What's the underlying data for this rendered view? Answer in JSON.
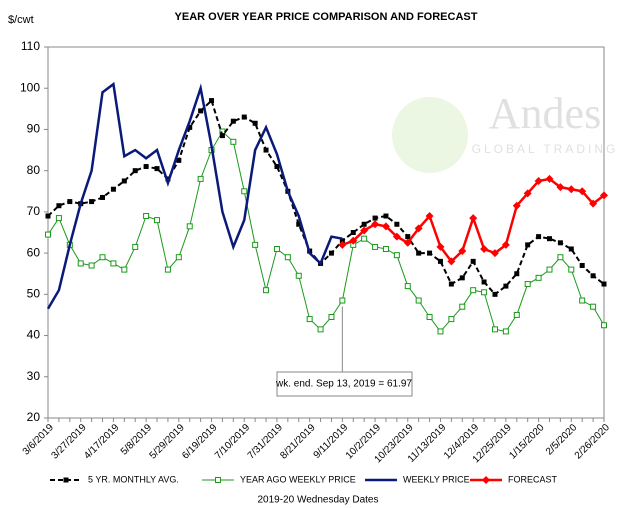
{
  "chart_data": {
    "type": "line",
    "title": "YEAR OVER YEAR PRICE COMPARISON AND FORECAST",
    "y_label": "$/cwt",
    "x_label": "2019-20 Wednesday Dates",
    "watermark": {
      "name": "Andes",
      "tagline": "GLOBAL TRADING"
    },
    "annotation": {
      "text": "wk. end. Sep 13, 2019 = 61.97",
      "index": 27
    },
    "categories": [
      "3/6/2019",
      null,
      null,
      "3/27/2019",
      null,
      null,
      "4/17/2019",
      null,
      null,
      "5/8/2019",
      null,
      null,
      "5/29/2019",
      null,
      null,
      "6/19/2019",
      null,
      null,
      "7/10/2019",
      null,
      null,
      "7/31/2019",
      null,
      null,
      "8/21/2019",
      null,
      null,
      "9/11/2019",
      null,
      null,
      "10/2/2019",
      null,
      null,
      "10/23/2019",
      null,
      null,
      "11/13/2019",
      null,
      null,
      "12/4/2019",
      null,
      null,
      "12/25/2019",
      null,
      null,
      "1/15/2020",
      null,
      null,
      "2/5/2020",
      null,
      null,
      "2/26/2020"
    ],
    "ylim": [
      20,
      110
    ],
    "yticks": [
      20,
      30,
      40,
      50,
      60,
      70,
      80,
      90,
      100,
      110
    ],
    "series": [
      {
        "name": "5 YR. MONTHLY AVG.",
        "color": "#000000",
        "style": "dashed",
        "marker": "square-filled",
        "values": [
          69,
          71.5,
          72.5,
          72,
          72.5,
          73.5,
          75.5,
          77.5,
          80,
          81,
          80.5,
          78,
          82.5,
          90.5,
          94.5,
          97,
          88.5,
          92,
          93,
          91.5,
          85,
          81,
          75,
          67,
          60.5,
          57.5,
          60,
          63,
          65,
          67,
          68.5,
          69,
          67,
          64,
          60,
          60,
          58,
          52.5,
          54,
          58,
          53,
          50,
          52,
          55,
          62,
          64,
          63.5,
          62.5,
          61,
          57,
          54.5,
          52.5
        ]
      },
      {
        "name": "YEAR AGO WEEKLY PRICE",
        "color": "#1a9a1a",
        "style": "solid",
        "marker": "square-open",
        "values": [
          64.5,
          68.5,
          62,
          57.5,
          57,
          59,
          57.5,
          56,
          61.5,
          69,
          68,
          56,
          59,
          66.5,
          78,
          85,
          89.5,
          87,
          75,
          62,
          51,
          61,
          59,
          54.5,
          44,
          41.5,
          44.5,
          48.5,
          62,
          63.5,
          61.5,
          61,
          59.5,
          52,
          48.5,
          44.5,
          41,
          44,
          47,
          51,
          50.5,
          41.5,
          41,
          45,
          52.5,
          54,
          56,
          59,
          56,
          48.5,
          47,
          42.5
        ]
      },
      {
        "name": "WEEKLY PRICE",
        "color": "#0a1a7a",
        "style": "thick",
        "marker": "none",
        "values": [
          46.5,
          51,
          62,
          72,
          80,
          99,
          101,
          83.5,
          85,
          83,
          85,
          77,
          85,
          92,
          100,
          86,
          70,
          61.5,
          68,
          85,
          90.5,
          84,
          75,
          69,
          60,
          57.5,
          64,
          63.5,
          null,
          null,
          null,
          null,
          null,
          null,
          null,
          null,
          null,
          null,
          null,
          null,
          null,
          null,
          null,
          null,
          null,
          null,
          null,
          null,
          null,
          null,
          null,
          null
        ]
      },
      {
        "name": "FORECAST",
        "color": "#ff0000",
        "style": "thick",
        "marker": "diamond",
        "values": [
          null,
          null,
          null,
          null,
          null,
          null,
          null,
          null,
          null,
          null,
          null,
          null,
          null,
          null,
          null,
          null,
          null,
          null,
          null,
          null,
          null,
          null,
          null,
          null,
          null,
          null,
          null,
          62,
          63,
          65.5,
          67,
          66.5,
          64,
          62.5,
          66,
          69,
          61.5,
          58,
          60.5,
          68.5,
          61,
          60,
          62,
          71.5,
          74.5,
          77.5,
          78,
          76,
          75.5,
          75,
          72,
          74
        ]
      }
    ]
  }
}
